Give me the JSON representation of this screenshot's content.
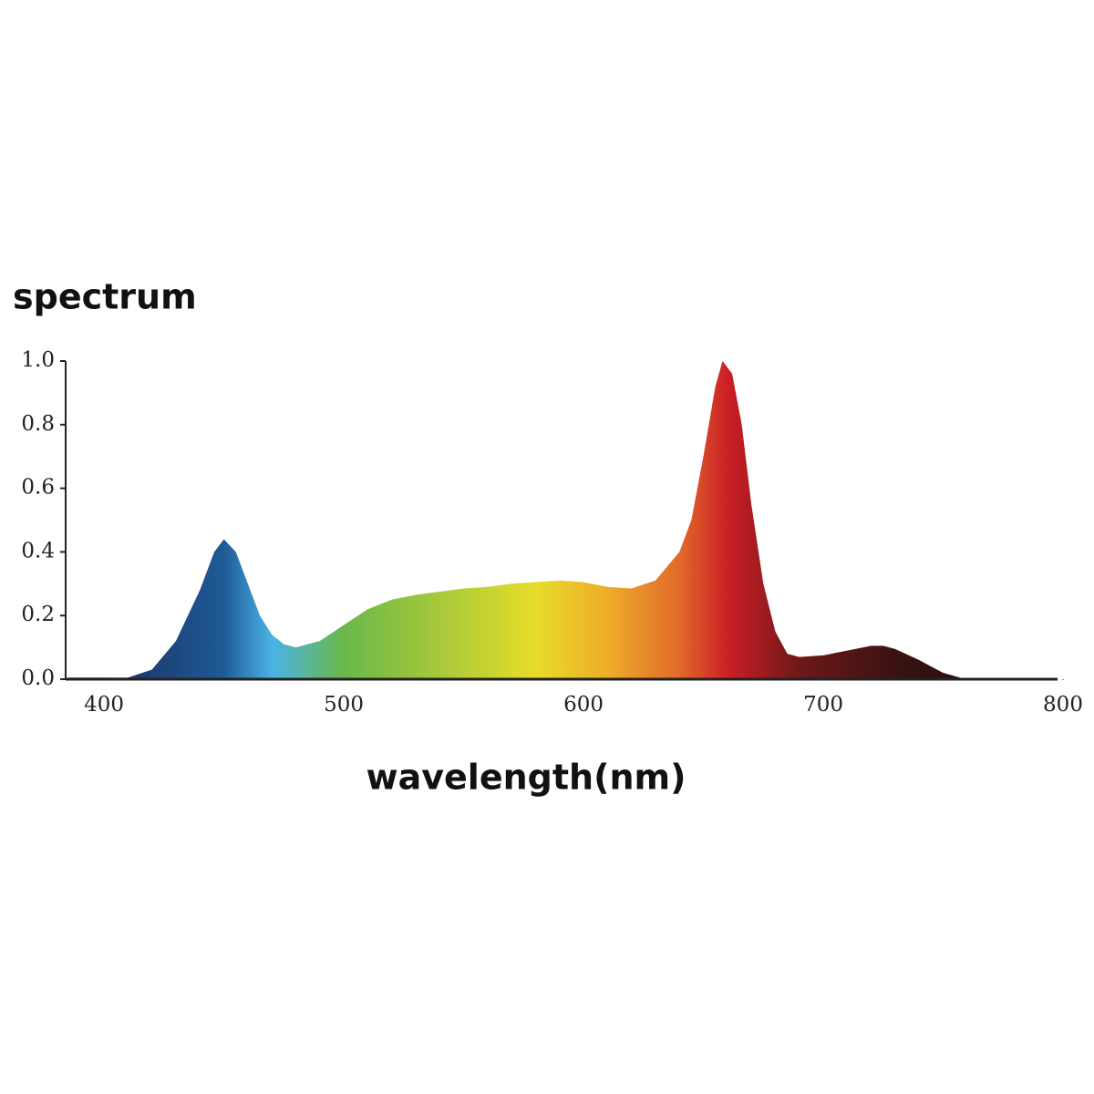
{
  "chart_data": {
    "type": "area",
    "title": "spectrum",
    "x_label": "wavelength(nm)",
    "x": [
      385,
      410,
      420,
      430,
      440,
      446,
      450,
      455,
      460,
      465,
      470,
      475,
      480,
      490,
      500,
      510,
      520,
      530,
      540,
      550,
      560,
      570,
      580,
      590,
      600,
      610,
      620,
      630,
      640,
      645,
      650,
      655,
      658,
      662,
      666,
      670,
      675,
      680,
      685,
      690,
      700,
      710,
      720,
      725,
      730,
      740,
      750,
      757
    ],
    "values": [
      0.005,
      0.005,
      0.03,
      0.12,
      0.28,
      0.4,
      0.44,
      0.4,
      0.3,
      0.2,
      0.14,
      0.11,
      0.1,
      0.12,
      0.17,
      0.22,
      0.25,
      0.265,
      0.275,
      0.285,
      0.29,
      0.3,
      0.305,
      0.31,
      0.305,
      0.29,
      0.285,
      0.31,
      0.4,
      0.5,
      0.7,
      0.92,
      1.0,
      0.96,
      0.8,
      0.55,
      0.3,
      0.15,
      0.08,
      0.07,
      0.075,
      0.09,
      0.105,
      0.105,
      0.095,
      0.06,
      0.02,
      0.005
    ],
    "fill_gradient": [
      {
        "x": 400,
        "color": "#1b2f5e"
      },
      {
        "x": 450,
        "color": "#1f5a96"
      },
      {
        "x": 470,
        "color": "#4ab3e6"
      },
      {
        "x": 500,
        "color": "#6ab84a"
      },
      {
        "x": 540,
        "color": "#a7c93a"
      },
      {
        "x": 580,
        "color": "#e8dc2a"
      },
      {
        "x": 610,
        "color": "#eeac2a"
      },
      {
        "x": 640,
        "color": "#e06a2a"
      },
      {
        "x": 660,
        "color": "#cc1f25"
      },
      {
        "x": 690,
        "color": "#6e1818"
      },
      {
        "x": 730,
        "color": "#3a1212"
      },
      {
        "x": 760,
        "color": "#2a1010"
      }
    ],
    "xlim": [
      384,
      800
    ],
    "ylim": [
      0,
      1
    ],
    "xticks": [
      400,
      500,
      600,
      700,
      800
    ],
    "yticks": [
      {
        "value": 0,
        "label": "0.0"
      },
      0.2,
      0.4,
      0.6,
      0.8,
      {
        "value": 1,
        "label": "1.0"
      }
    ]
  }
}
